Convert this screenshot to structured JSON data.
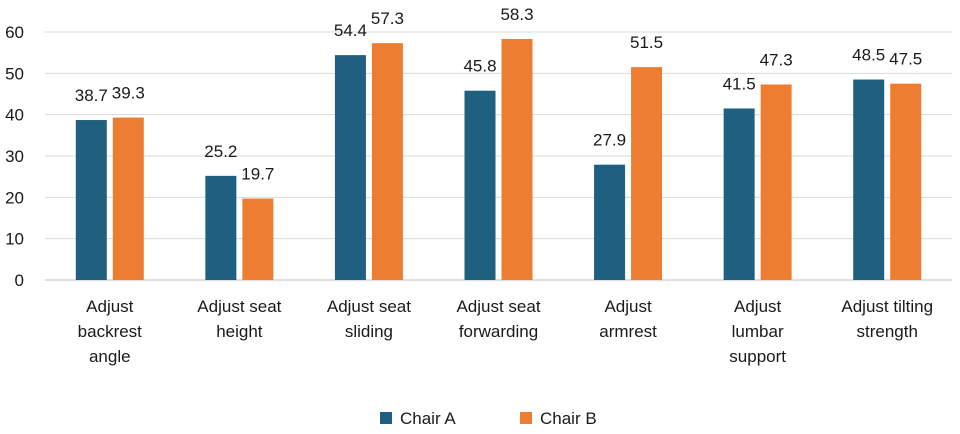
{
  "chart_data": {
    "type": "bar",
    "categories": [
      [
        "Adjust",
        "backrest",
        "angle"
      ],
      [
        "Adjust seat",
        "height"
      ],
      [
        "Adjust seat",
        "sliding"
      ],
      [
        "Adjust seat",
        "forwarding"
      ],
      [
        "Adjust",
        "armrest"
      ],
      [
        "Adjust",
        "lumbar",
        "support"
      ],
      [
        "Adjust tilting",
        "strength"
      ]
    ],
    "series": [
      {
        "name": "Chair A",
        "color": "#1f5f7f",
        "values": [
          38.7,
          25.2,
          54.4,
          45.8,
          27.9,
          41.5,
          48.5
        ],
        "labels": [
          "38.7",
          "25.2",
          "54.4",
          "45.8",
          "27.9",
          "41.5",
          "48.5"
        ]
      },
      {
        "name": "Chair B",
        "color": "#ed7d31",
        "values": [
          39.3,
          19.7,
          57.3,
          58.3,
          51.5,
          47.3,
          47.5
        ],
        "labels": [
          "39.3",
          "19.7",
          "57.3",
          "58.3",
          "51.5",
          "47.3",
          "47.5"
        ]
      }
    ],
    "yticks": [
      "0",
      "10",
      "20",
      "30",
      "40",
      "50",
      "60"
    ],
    "ylim": [
      0,
      60
    ],
    "grid": true,
    "legend": "bottom-center"
  }
}
